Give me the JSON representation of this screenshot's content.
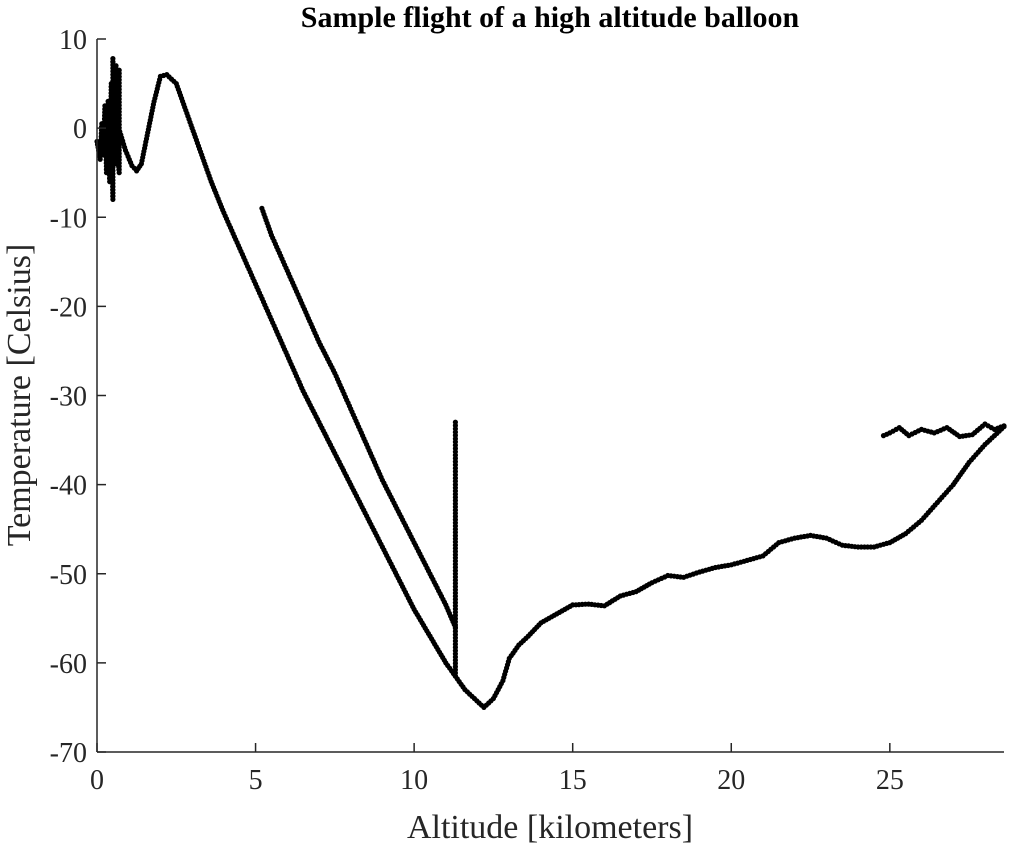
{
  "chart_data": {
    "type": "scatter",
    "title": "Sample flight of a high altitude balloon",
    "xlabel": "Altitude [kilometers]",
    "ylabel": "Temperature [Celsius]",
    "xlim": [
      0,
      28.6
    ],
    "ylim": [
      -70,
      10
    ],
    "xticks": [
      0,
      5,
      10,
      15,
      20,
      25
    ],
    "yticks": [
      10,
      0,
      -10,
      -20,
      -30,
      -40,
      -50,
      -60,
      -70
    ],
    "grid": false,
    "marker_color": "#000000",
    "series": [
      {
        "segments": [
          [
            [
              0.0,
              -1.5
            ],
            [
              0.1,
              -3.5
            ],
            [
              0.15,
              0.5
            ],
            [
              0.2,
              -3
            ],
            [
              0.25,
              2.5
            ],
            [
              0.3,
              -5
            ],
            [
              0.35,
              3
            ],
            [
              0.4,
              -6
            ],
            [
              0.45,
              5
            ],
            [
              0.5,
              -8
            ],
            [
              0.5,
              7.8
            ],
            [
              0.55,
              1
            ],
            [
              0.6,
              -4
            ],
            [
              0.6,
              7
            ],
            [
              0.65,
              -3
            ],
            [
              0.7,
              -5
            ],
            [
              0.7,
              6.5
            ],
            [
              0.6,
              1
            ],
            [
              0.9,
              -2.5
            ],
            [
              1.1,
              -4.2
            ],
            [
              1.25,
              -4.8
            ],
            [
              1.4,
              -4
            ],
            [
              1.6,
              -0.5
            ],
            [
              1.8,
              3
            ],
            [
              2.0,
              5.8
            ],
            [
              2.2,
              6
            ],
            [
              2.5,
              5
            ],
            [
              2.8,
              2
            ],
            [
              3.2,
              -2
            ],
            [
              3.6,
              -6
            ],
            [
              4.0,
              -9.5
            ],
            [
              4.5,
              -13.5
            ],
            [
              5.0,
              -17.5
            ],
            [
              5.5,
              -21.5
            ],
            [
              6.0,
              -25.5
            ],
            [
              6.5,
              -29.5
            ],
            [
              7.0,
              -33
            ],
            [
              7.5,
              -36.5
            ],
            [
              8.0,
              -40
            ],
            [
              8.5,
              -43.5
            ],
            [
              9.0,
              -47
            ],
            [
              9.5,
              -50.5
            ],
            [
              10.0,
              -54
            ],
            [
              10.5,
              -57
            ],
            [
              11.0,
              -60
            ],
            [
              11.3,
              -61.5
            ],
            [
              11.6,
              -63
            ],
            [
              11.9,
              -64
            ],
            [
              12.2,
              -65
            ],
            [
              12.5,
              -64
            ],
            [
              12.8,
              -62
            ],
            [
              13.0,
              -59.5
            ],
            [
              13.3,
              -58
            ],
            [
              13.6,
              -57
            ],
            [
              14.0,
              -55.5
            ],
            [
              14.5,
              -54.5
            ],
            [
              15.0,
              -53.5
            ],
            [
              15.5,
              -53.4
            ],
            [
              16.0,
              -53.6
            ],
            [
              16.5,
              -52.5
            ],
            [
              17.0,
              -52
            ],
            [
              17.5,
              -51
            ],
            [
              18.0,
              -50.2
            ],
            [
              18.5,
              -50.4
            ],
            [
              19.0,
              -49.8
            ],
            [
              19.5,
              -49.3
            ],
            [
              20.0,
              -49
            ],
            [
              20.5,
              -48.5
            ],
            [
              21.0,
              -48
            ],
            [
              21.5,
              -46.5
            ],
            [
              22.0,
              -46
            ],
            [
              22.5,
              -45.7
            ],
            [
              23.0,
              -46
            ],
            [
              23.5,
              -46.8
            ],
            [
              24.0,
              -47
            ],
            [
              24.5,
              -47
            ],
            [
              25.0,
              -46.5
            ],
            [
              25.5,
              -45.5
            ],
            [
              26.0,
              -44
            ],
            [
              26.5,
              -42
            ],
            [
              27.0,
              -40
            ],
            [
              27.5,
              -37.5
            ],
            [
              28.0,
              -35.5
            ],
            [
              28.6,
              -33.5
            ]
          ],
          [
            [
              5.2,
              -9
            ],
            [
              5.5,
              -12
            ],
            [
              6.0,
              -16
            ],
            [
              6.5,
              -20
            ],
            [
              7.0,
              -24
            ],
            [
              7.5,
              -27.5
            ],
            [
              8.0,
              -31.5
            ],
            [
              8.5,
              -35.5
            ],
            [
              9.0,
              -39.5
            ],
            [
              9.5,
              -43
            ],
            [
              10.0,
              -46.5
            ],
            [
              10.5,
              -50
            ],
            [
              11.0,
              -53.5
            ],
            [
              11.3,
              -56
            ]
          ],
          [
            [
              11.3,
              -33
            ],
            [
              11.3,
              -40
            ],
            [
              11.3,
              -50
            ],
            [
              11.3,
              -61.5
            ]
          ],
          [
            [
              24.8,
              -34.5
            ],
            [
              25.0,
              -34.2
            ],
            [
              25.3,
              -33.6
            ],
            [
              25.6,
              -34.5
            ],
            [
              26.0,
              -33.8
            ],
            [
              26.4,
              -34.2
            ],
            [
              26.8,
              -33.6
            ],
            [
              27.2,
              -34.6
            ],
            [
              27.6,
              -34.4
            ],
            [
              28.0,
              -33.2
            ],
            [
              28.3,
              -33.8
            ],
            [
              28.6,
              -33.4
            ]
          ]
        ]
      }
    ]
  }
}
